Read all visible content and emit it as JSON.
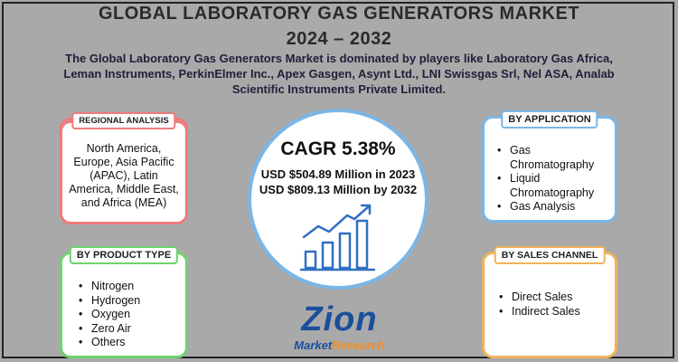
{
  "header": {
    "title_line1": "GLOBAL LABORATORY GAS GENERATORS MARKET",
    "title_line2": "2024 – 2032",
    "subtitle": "The Global Laboratory Gas Generators Market is dominated by players like Laboratory Gas Africa, Leman Instruments, PerkinElmer Inc., Apex Gasgen, Asynt Ltd., LNI Swissgas Srl, Nel ASA, Analab Scientific Instruments Private Limited."
  },
  "regional": {
    "tag": "REGIONAL ANALYSIS",
    "text": "North America, Europe, Asia Pacific (APAC), Latin America, Middle East, and Africa (MEA)"
  },
  "product": {
    "tag": "BY PRODUCT TYPE",
    "items": [
      "Nitrogen",
      "Hydrogen",
      "Oxygen",
      "Zero Air",
      "Others"
    ]
  },
  "application": {
    "tag": "BY APPLICATION",
    "items": [
      "Gas Chromatography",
      "Liquid Chromatography",
      "Gas Analysis"
    ]
  },
  "sales": {
    "tag": "BY SALES CHANNEL",
    "items": [
      "Direct Sales",
      "Indirect Sales"
    ]
  },
  "center": {
    "cagr": "CAGR 5.38%",
    "usd_2023": "USD $504.89 Million in 2023",
    "usd_2032": "USD $809.13 Million by 2032"
  },
  "logo": {
    "main": "Zion",
    "sub_left": "Market",
    "sub_right": "Research"
  },
  "colors": {
    "background": "#a9a9a9",
    "regional": "#ef7a7a",
    "product": "#6fd36f",
    "application": "#7ab6e6",
    "sales": "#f2b25a",
    "logo_blue": "#1b4f9c",
    "logo_orange": "#f28c1f"
  },
  "icons": [
    "growth-chart-icon"
  ]
}
